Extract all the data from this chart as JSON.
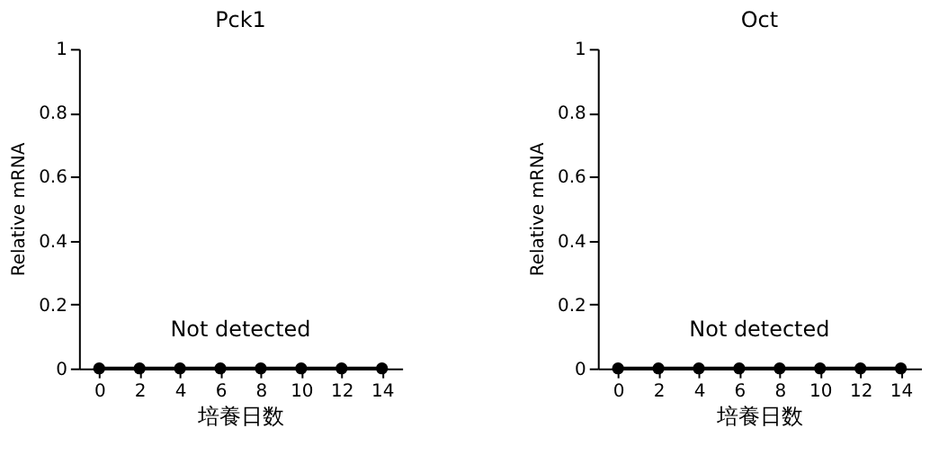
{
  "chart_data": [
    {
      "type": "line",
      "title": "Pck1",
      "xlabel": "培養日数",
      "ylabel": "Relative mRNA",
      "x": [
        0,
        2,
        4,
        6,
        8,
        10,
        12,
        14
      ],
      "series": [
        {
          "color": "#000000",
          "values": [
            0,
            0,
            0,
            0,
            0,
            0,
            0,
            0
          ]
        }
      ],
      "xlim": [
        -1,
        15
      ],
      "xticks": [
        0,
        2,
        4,
        6,
        8,
        10,
        12,
        14
      ],
      "ylim": [
        0,
        1
      ],
      "yticks": [
        0,
        0.2,
        0.4,
        0.6,
        0.8,
        1
      ],
      "annotations": [
        "Not detected"
      ],
      "marker": "circle",
      "line_style": "solid",
      "grid": false
    },
    {
      "type": "line",
      "title": "Oct",
      "xlabel": "培養日数",
      "ylabel": "Relative mRNA",
      "x": [
        0,
        2,
        4,
        6,
        8,
        10,
        12,
        14
      ],
      "series": [
        {
          "color": "#000000",
          "values": [
            0,
            0,
            0,
            0,
            0,
            0,
            0,
            0
          ]
        }
      ],
      "xlim": [
        -1,
        15
      ],
      "xticks": [
        0,
        2,
        4,
        6,
        8,
        10,
        12,
        14
      ],
      "ylim": [
        0,
        1
      ],
      "yticks": [
        0,
        0.2,
        0.4,
        0.6,
        0.8,
        1
      ],
      "annotations": [
        "Not detected"
      ],
      "marker": "circle",
      "line_style": "solid",
      "grid": false
    }
  ]
}
